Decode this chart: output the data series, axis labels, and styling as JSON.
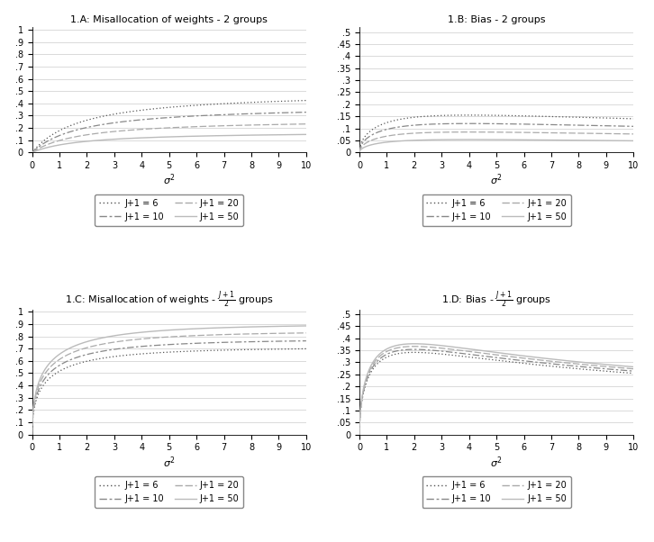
{
  "J_values": [
    6,
    10,
    20,
    50
  ],
  "titles": [
    "1.A: Misallocation of weights - 2 groups",
    "1.B: Bias - 2 groups",
    "1.C: Misallocation of weights - $\\frac{J+1}{2}$ groups",
    "1.D: Bias - $\\frac{J+1}{2}$ groups"
  ],
  "colors": {
    "6": "#555555",
    "10": "#888888",
    "20": "#aaaaaa",
    "50": "#bbbbbb"
  },
  "yticks_AC": [
    0,
    0.1,
    0.2,
    0.3,
    0.4,
    0.5,
    0.6,
    0.7,
    0.8,
    0.9,
    1.0
  ],
  "yticks_BD": [
    0,
    0.05,
    0.1,
    0.15,
    0.2,
    0.25,
    0.3,
    0.35,
    0.4,
    0.45,
    0.5
  ],
  "xticks": [
    0,
    1,
    2,
    3,
    4,
    5,
    6,
    7,
    8,
    9,
    10
  ],
  "legend_labels": [
    "J+1 = 6",
    "J+1 = 10",
    "J+1 = 20",
    "J+1 = 50"
  ],
  "background_color": "#ffffff",
  "grid_color": "#cccccc"
}
